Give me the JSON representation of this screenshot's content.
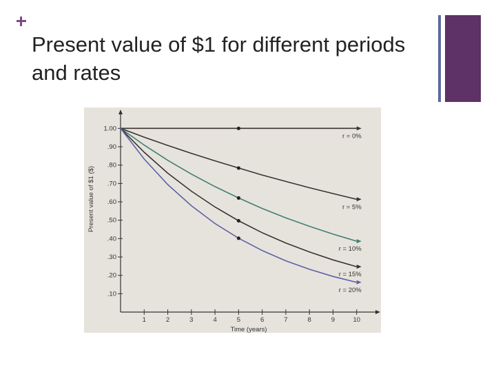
{
  "slide": {
    "title": "Present value of $1 for different periods and rates"
  },
  "chart_data": {
    "type": "line",
    "title": "",
    "xlabel": "Time (years)",
    "ylabel": "Present value of $1 ($)",
    "xlim": [
      0,
      11
    ],
    "ylim": [
      0,
      1.05
    ],
    "x_ticks": [
      "1",
      "2",
      "3",
      "4",
      "5",
      "6",
      "7",
      "8",
      "9",
      "10"
    ],
    "y_ticks": [
      "1.00",
      ".90",
      ".80",
      ".70",
      ".60",
      ".50",
      ".40",
      ".30",
      ".20",
      ".10"
    ],
    "x": [
      0,
      1,
      2,
      3,
      4,
      5,
      6,
      7,
      8,
      9,
      10
    ],
    "marker_x": 5,
    "series": [
      {
        "name": "r = 0%",
        "color": "#3a3230",
        "values": [
          1.0,
          1.0,
          1.0,
          1.0,
          1.0,
          1.0,
          1.0,
          1.0,
          1.0,
          1.0,
          1.0
        ]
      },
      {
        "name": "r = 5%",
        "color": "#3a3230",
        "values": [
          1.0,
          0.952,
          0.907,
          0.864,
          0.823,
          0.784,
          0.746,
          0.711,
          0.677,
          0.645,
          0.614
        ]
      },
      {
        "name": "r = 10%",
        "color": "#3f7f72",
        "values": [
          1.0,
          0.909,
          0.826,
          0.751,
          0.683,
          0.621,
          0.564,
          0.513,
          0.467,
          0.424,
          0.386
        ]
      },
      {
        "name": "r = 15%",
        "color": "#3a3230",
        "values": [
          1.0,
          0.87,
          0.756,
          0.658,
          0.572,
          0.497,
          0.432,
          0.376,
          0.327,
          0.284,
          0.247
        ]
      },
      {
        "name": "r = 20%",
        "color": "#5d5fa6",
        "values": [
          1.0,
          0.833,
          0.694,
          0.579,
          0.482,
          0.402,
          0.335,
          0.279,
          0.233,
          0.194,
          0.162
        ]
      }
    ],
    "legend": "right-end-labels",
    "grid": false
  }
}
